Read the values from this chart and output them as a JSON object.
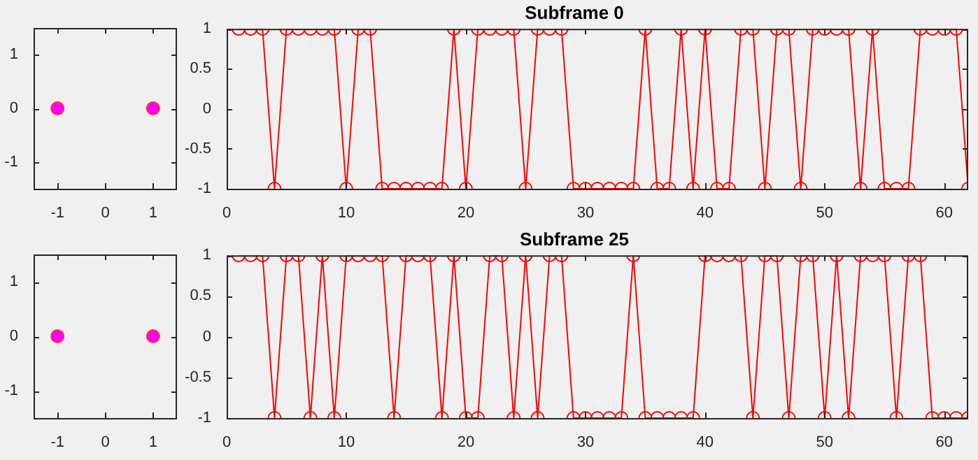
{
  "chart_data": [
    {
      "type": "scatter",
      "x": [
        -1,
        1
      ],
      "values": [
        0,
        0
      ],
      "color": "#ff00ff",
      "marker": "circle",
      "xlim": [
        -1.5,
        1.5
      ],
      "ylim": [
        -1.5,
        1.5
      ],
      "xticks": [
        -1,
        0,
        1
      ],
      "yticks": [
        -1,
        0,
        1
      ]
    },
    {
      "type": "line",
      "title": "Subframe 0",
      "x": [
        1,
        2,
        3,
        4,
        5,
        6,
        7,
        8,
        9,
        10,
        11,
        12,
        13,
        14,
        15,
        16,
        17,
        18,
        19,
        20,
        21,
        22,
        23,
        24,
        25,
        26,
        27,
        28,
        29,
        30,
        31,
        32,
        33,
        34,
        35,
        36,
        37,
        38,
        39,
        40,
        41,
        42,
        43,
        44,
        45,
        46,
        47,
        48,
        49,
        50,
        51,
        52,
        53,
        54,
        55,
        56,
        57,
        58,
        59,
        60,
        61,
        62
      ],
      "values": [
        1,
        1,
        1,
        -1,
        1,
        1,
        1,
        1,
        1,
        -1,
        1,
        1,
        -1,
        -1,
        -1,
        -1,
        -1,
        -1,
        1,
        -1,
        1,
        1,
        1,
        1,
        -1,
        1,
        1,
        1,
        -1,
        -1,
        -1,
        -1,
        -1,
        -1,
        1,
        -1,
        -1,
        1,
        -1,
        1,
        -1,
        -1,
        1,
        1,
        -1,
        1,
        1,
        -1,
        1,
        1,
        1,
        1,
        -1,
        1,
        -1,
        -1,
        -1,
        1,
        1,
        1,
        1,
        -1
      ],
      "color": "#ff0000",
      "marker": "circle",
      "line_style": "solid",
      "xlim": [
        0,
        62
      ],
      "ylim": [
        -1,
        1
      ],
      "xticks": [
        0,
        10,
        20,
        30,
        40,
        50,
        60
      ],
      "yticks": [
        -1,
        -0.5,
        0,
        0.5,
        1
      ]
    },
    {
      "type": "scatter",
      "x": [
        -1,
        1
      ],
      "values": [
        0,
        0
      ],
      "color": "#ff00ff",
      "marker": "circle",
      "xlim": [
        -1.5,
        1.5
      ],
      "ylim": [
        -1.5,
        1.5
      ],
      "xticks": [
        -1,
        0,
        1
      ],
      "yticks": [
        -1,
        0,
        1
      ]
    },
    {
      "type": "line",
      "title": "Subframe 25",
      "x": [
        1,
        2,
        3,
        4,
        5,
        6,
        7,
        8,
        9,
        10,
        11,
        12,
        13,
        14,
        15,
        16,
        17,
        18,
        19,
        20,
        21,
        22,
        23,
        24,
        25,
        26,
        27,
        28,
        29,
        30,
        31,
        32,
        33,
        34,
        35,
        36,
        37,
        38,
        39,
        40,
        41,
        42,
        43,
        44,
        45,
        46,
        47,
        48,
        49,
        50,
        51,
        52,
        53,
        54,
        55,
        56,
        57,
        58,
        59,
        60,
        61,
        62
      ],
      "values": [
        1,
        1,
        1,
        -1,
        1,
        1,
        -1,
        1,
        -1,
        1,
        1,
        1,
        1,
        -1,
        1,
        1,
        1,
        -1,
        1,
        -1,
        -1,
        1,
        1,
        -1,
        1,
        -1,
        1,
        1,
        -1,
        -1,
        -1,
        -1,
        -1,
        1,
        -1,
        -1,
        -1,
        -1,
        -1,
        1,
        1,
        1,
        1,
        -1,
        1,
        1,
        -1,
        1,
        1,
        -1,
        1,
        -1,
        1,
        1,
        1,
        -1,
        1,
        1,
        -1,
        -1,
        -1,
        -1
      ],
      "color": "#ff0000",
      "marker": "circle",
      "line_style": "solid",
      "xlim": [
        0,
        62
      ],
      "ylim": [
        -1,
        1
      ],
      "xticks": [
        0,
        10,
        20,
        30,
        40,
        50,
        60
      ],
      "yticks": [
        -1,
        -0.5,
        0,
        0.5,
        1
      ]
    }
  ]
}
